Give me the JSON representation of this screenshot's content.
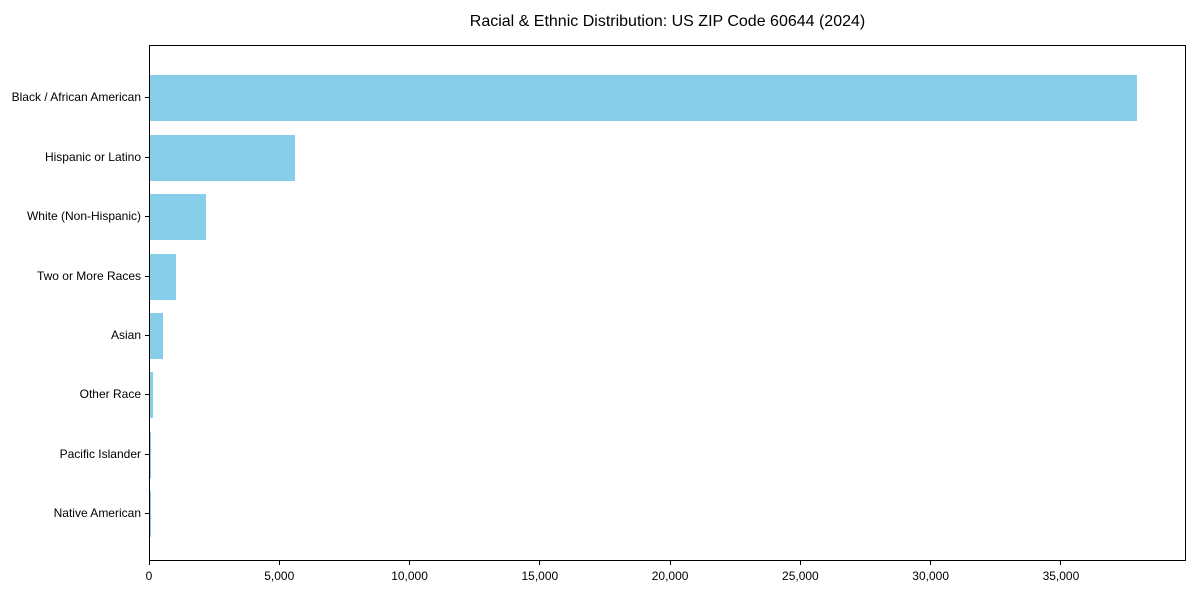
{
  "chart_data": {
    "type": "bar",
    "orientation": "horizontal",
    "title": "Racial & Ethnic Distribution: US ZIP Code 60644 (2024)",
    "categories": [
      "Black / African American",
      "Hispanic or Latino",
      "White (Non-Hispanic)",
      "Two or More Races",
      "Asian",
      "Other Race",
      "Pacific Islander",
      "Native American"
    ],
    "values": [
      37900,
      5550,
      2160,
      990,
      500,
      120,
      20,
      10
    ],
    "xlabel": "",
    "ylabel": "",
    "xlim": [
      0,
      39800
    ],
    "x_ticks": [
      0,
      5000,
      10000,
      15000,
      20000,
      25000,
      30000,
      35000
    ],
    "x_tick_labels": [
      "0",
      "5,000",
      "10,000",
      "15,000",
      "20,000",
      "25,000",
      "30,000",
      "35,000"
    ],
    "bar_color": "#87CEEB",
    "text_color": "#000000",
    "background": "#FFFFFF",
    "grid": false,
    "legend": null
  }
}
